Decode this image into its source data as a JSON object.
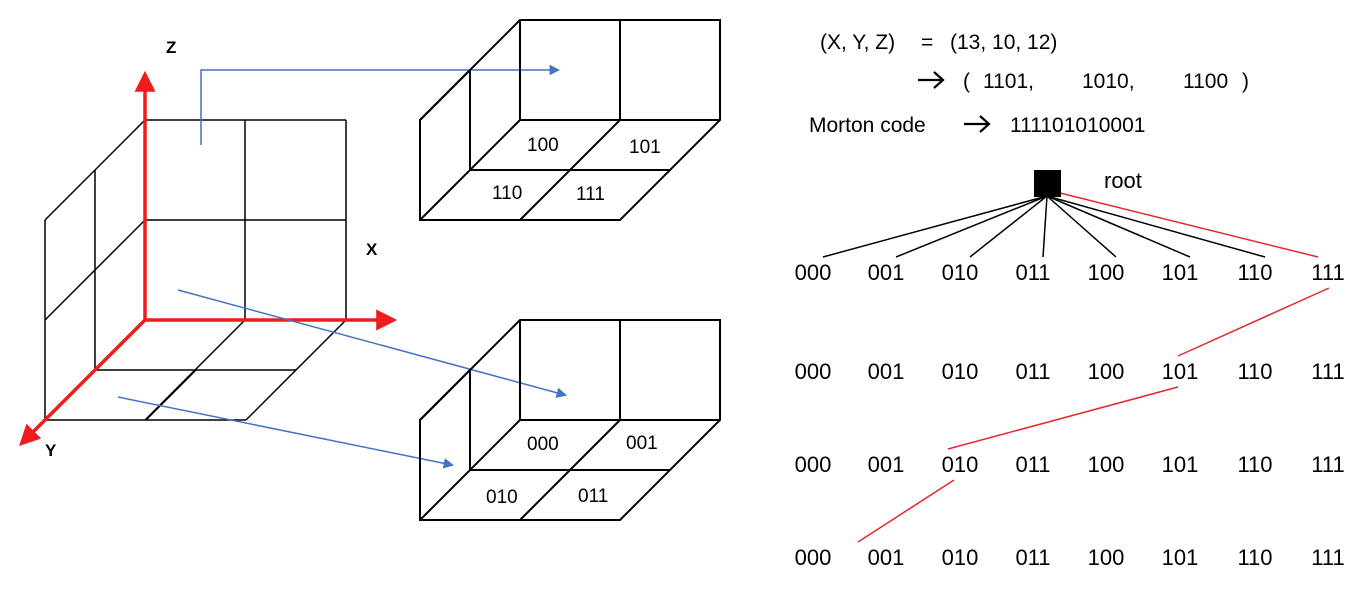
{
  "axes": {
    "x_label": "X",
    "y_label": "Y",
    "z_label": "Z"
  },
  "octant_upper_labels": [
    "100",
    "101",
    "110",
    "111"
  ],
  "octant_lower_labels": [
    "000",
    "001",
    "010",
    "011"
  ],
  "equation": {
    "line1_left": "(X, Y, Z)",
    "line1_eq": "=",
    "line1_value": "(13, 10, 12)",
    "line2_open": "(",
    "line2_x": "1101,",
    "line2_y": "1010,",
    "line2_z": "1100",
    "line2_close": ")",
    "line3_label": "Morton code",
    "line3_value": "111101010001"
  },
  "tree": {
    "root_label": "root",
    "level_labels": [
      "000",
      "001",
      "010",
      "011",
      "100",
      "101",
      "110",
      "111"
    ],
    "levels": 4,
    "path_indices": [
      7,
      5,
      2,
      1
    ]
  },
  "colors": {
    "axis": "#ee1c1c",
    "arrow": "#4472c4",
    "path": "#e8262a",
    "line": "#000000"
  }
}
